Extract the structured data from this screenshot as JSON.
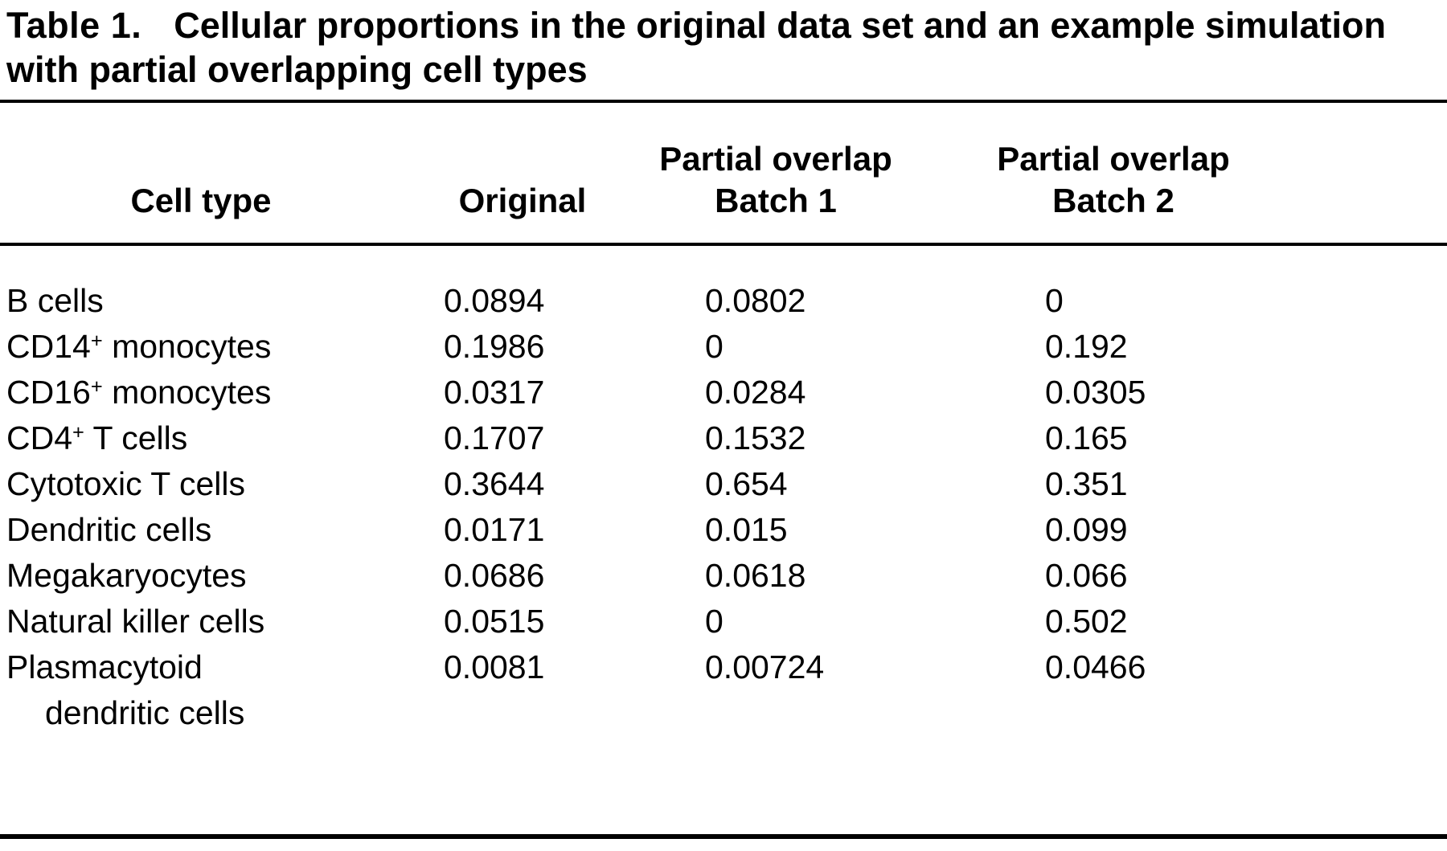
{
  "caption": {
    "label": "Table 1.",
    "text": "Cellular proportions in the original data set and an example simulation with partial overlapping cell types"
  },
  "table": {
    "headers": [
      {
        "line1": "Cell type",
        "line2": ""
      },
      {
        "line1": "Original",
        "line2": ""
      },
      {
        "line1": "Partial overlap",
        "line2": "Batch 1"
      },
      {
        "line1": "Partial overlap",
        "line2": "Batch 2"
      }
    ],
    "rows": [
      {
        "name": "B cells",
        "sup": "",
        "rest": "",
        "original": "0.0894",
        "batch1": "0.0802",
        "batch2": "0"
      },
      {
        "name": "CD14",
        "sup": "+",
        "rest": " monocytes",
        "original": "0.1986",
        "batch1": "0",
        "batch2": "0.192"
      },
      {
        "name": "CD16",
        "sup": "+",
        "rest": " monocytes",
        "original": "0.0317",
        "batch1": "0.0284",
        "batch2": "0.0305"
      },
      {
        "name": "CD4",
        "sup": "+",
        "rest": " T cells",
        "original": "0.1707",
        "batch1": "0.1532",
        "batch2": "0.165"
      },
      {
        "name": "Cytotoxic T cells",
        "sup": "",
        "rest": "",
        "original": "0.3644",
        "batch1": "0.654",
        "batch2": "0.351"
      },
      {
        "name": "Dendritic cells",
        "sup": "",
        "rest": "",
        "original": "0.0171",
        "batch1": "0.015",
        "batch2": "0.099"
      },
      {
        "name": "Megakaryocytes",
        "sup": "",
        "rest": "",
        "original": "0.0686",
        "batch1": "0.0618",
        "batch2": "0.066"
      },
      {
        "name": "Natural killer cells",
        "sup": "",
        "rest": "",
        "original": "0.0515",
        "batch1": "0",
        "batch2": "0.502"
      },
      {
        "name": "Plasmacytoid dendritic cells",
        "sup": "",
        "rest": "",
        "original": "0.0081",
        "batch1": "0.00724",
        "batch2": "0.0466"
      }
    ]
  }
}
